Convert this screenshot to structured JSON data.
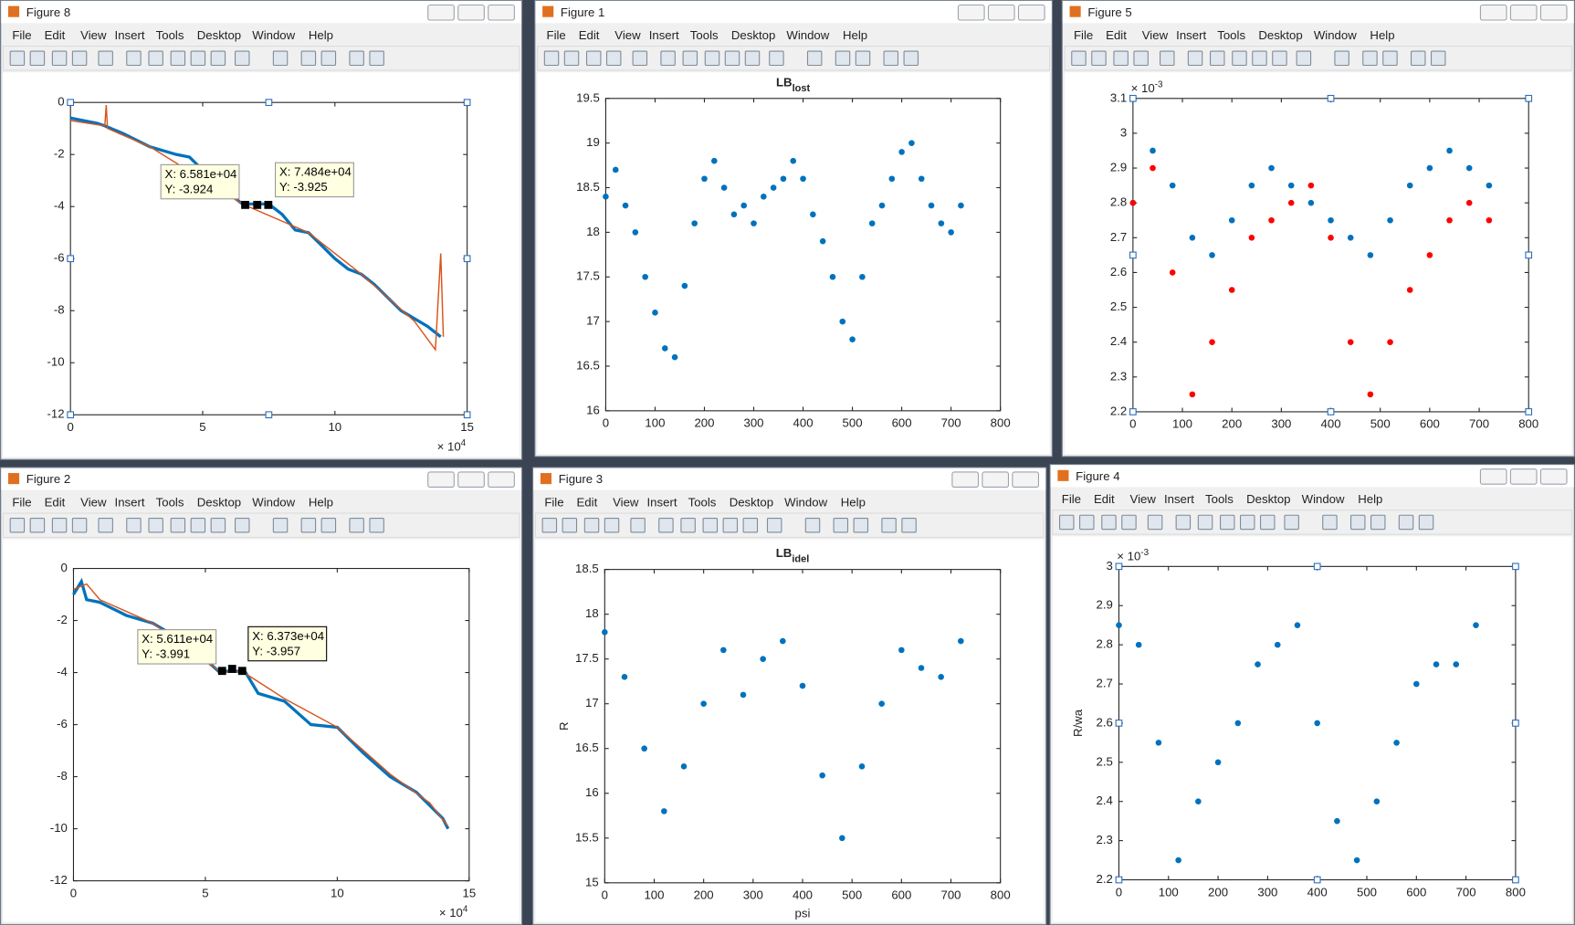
{
  "menu": [
    "File",
    "Edit",
    "View",
    "Insert",
    "Tools",
    "Desktop",
    "Window",
    "Help"
  ],
  "windows": [
    {
      "title": "Figure 8",
      "chart": {
        "type": "line",
        "xlim": [
          0,
          15
        ],
        "ylim": [
          -12,
          0
        ],
        "xticks": [
          0,
          5,
          10,
          15
        ],
        "yticks": [
          0,
          -2,
          -4,
          -6,
          -8,
          -10,
          -12
        ],
        "x_exponent": {
          "base": "× 10",
          "power": "4"
        },
        "series": [
          {
            "color": "#0072bd",
            "x": [
              0,
              0.5,
              1,
              1.3,
              2,
              3,
              4,
              4.5,
              5,
              5.5,
              6,
              6.5,
              7.5,
              8,
              8.5,
              9,
              9.5,
              10,
              10.5,
              11,
              11.5,
              12,
              12.5,
              13,
              13.5,
              14
            ],
            "values": [
              -0.6,
              -0.7,
              -0.8,
              -0.9,
              -1.2,
              -1.7,
              -2.0,
              -2.1,
              -2.6,
              -3.0,
              -3.5,
              -3.9,
              -3.9,
              -4.3,
              -4.9,
              -5.0,
              -5.5,
              -6.0,
              -6.4,
              -6.6,
              -7.0,
              -7.5,
              -8.0,
              -8.3,
              -8.6,
              -9.0
            ]
          },
          {
            "color": "#d95319",
            "x": [
              0,
              1.3,
              1.35,
              1.4,
              3,
              6.5,
              9,
              11,
              13,
              13.8,
              14,
              14.1
            ],
            "values": [
              -0.7,
              -0.9,
              -0.1,
              -1.0,
              -1.7,
              -3.9,
              -5.0,
              -6.6,
              -8.4,
              -9.5,
              -5.8,
              -9.0
            ]
          }
        ],
        "datatips": [
          {
            "x": "X: 6.581e+04",
            "y": "Y: -3.924"
          },
          {
            "x": "X: 7.484e+04",
            "y": "Y: -3.925"
          }
        ]
      }
    },
    {
      "title": "Figure 1",
      "chart": {
        "type": "scatter",
        "title": {
          "text": "LB",
          "subscript": "lost"
        },
        "xlim": [
          0,
          800
        ],
        "ylim": [
          16,
          19.5
        ],
        "xticks": [
          0,
          100,
          200,
          300,
          400,
          500,
          600,
          700,
          800
        ],
        "yticks": [
          16,
          16.5,
          17,
          17.5,
          18,
          18.5,
          19,
          19.5
        ],
        "series": [
          {
            "color": "#0072bd",
            "x": [
              0,
              20,
              40,
              60,
              80,
              100,
              120,
              140,
              160,
              180,
              200,
              220,
              240,
              260,
              280,
              300,
              320,
              340,
              360,
              380,
              400,
              420,
              440,
              460,
              480,
              500,
              520,
              540,
              560,
              580,
              600,
              620,
              640,
              660,
              680,
              700,
              720
            ],
            "values": [
              18.4,
              18.7,
              18.3,
              18.0,
              17.5,
              17.1,
              16.7,
              16.6,
              17.4,
              18.1,
              18.6,
              18.8,
              18.5,
              18.2,
              18.3,
              18.1,
              18.4,
              18.5,
              18.6,
              18.8,
              18.6,
              18.2,
              17.9,
              17.5,
              17.0,
              16.8,
              17.5,
              18.1,
              18.3,
              18.6,
              18.9,
              19.0,
              18.6,
              18.3,
              18.1,
              18.0,
              18.3
            ]
          }
        ]
      }
    },
    {
      "title": "Figure 5",
      "chart": {
        "type": "scatter",
        "xlim": [
          0,
          800
        ],
        "ylim": [
          2.2,
          3.1
        ],
        "xticks": [
          0,
          100,
          200,
          300,
          400,
          500,
          600,
          700,
          800
        ],
        "yticks": [
          2.2,
          2.3,
          2.4,
          2.5,
          2.6,
          2.7,
          2.8,
          2.9,
          3,
          3.1
        ],
        "y_exponent": {
          "base": "× 10",
          "power": "-3"
        },
        "series": [
          {
            "color": "#0072bd",
            "x": [
              0,
              40,
              80,
              120,
              160,
              200,
              240,
              280,
              320,
              360,
              400,
              440,
              480,
              520,
              560,
              600,
              640,
              680,
              720
            ],
            "values": [
              2.8,
              2.95,
              2.85,
              2.7,
              2.65,
              2.75,
              2.85,
              2.9,
              2.85,
              2.8,
              2.75,
              2.7,
              2.65,
              2.75,
              2.85,
              2.9,
              2.95,
              2.9,
              2.85
            ]
          },
          {
            "color": "#ff0000",
            "x": [
              0,
              40,
              80,
              120,
              160,
              200,
              240,
              280,
              320,
              360,
              400,
              440,
              480,
              520,
              560,
              600,
              640,
              680,
              720
            ],
            "values": [
              2.8,
              2.9,
              2.6,
              2.25,
              2.4,
              2.55,
              2.7,
              2.75,
              2.8,
              2.85,
              2.7,
              2.4,
              2.25,
              2.4,
              2.55,
              2.65,
              2.75,
              2.8,
              2.75
            ]
          }
        ]
      }
    },
    {
      "title": "Figure 2",
      "chart": {
        "type": "line",
        "xlim": [
          0,
          15
        ],
        "ylim": [
          -12,
          0
        ],
        "xticks": [
          0,
          5,
          10,
          15
        ],
        "yticks": [
          0,
          -2,
          -4,
          -6,
          -8,
          -10,
          -12
        ],
        "x_exponent": {
          "base": "× 10",
          "power": "4"
        },
        "series": [
          {
            "color": "#0072bd",
            "x": [
              0,
              0.3,
              0.5,
              1,
              2,
              3,
              4,
              5,
              5.5,
              6.5,
              7,
              8,
              9,
              10,
              11,
              12,
              13,
              14,
              14.2
            ],
            "values": [
              -1.0,
              -0.5,
              -1.2,
              -1.3,
              -1.8,
              -2.1,
              -2.7,
              -3.5,
              -3.95,
              -3.95,
              -4.8,
              -5.1,
              -6.0,
              -6.1,
              -7.1,
              -8.0,
              -8.6,
              -9.6,
              -10.0
            ]
          },
          {
            "color": "#d95319",
            "x": [
              0,
              0.5,
              1,
              3,
              5.6,
              6.4,
              8,
              10,
              12,
              13.5,
              14.2
            ],
            "values": [
              -0.8,
              -0.6,
              -1.2,
              -2.1,
              -3.99,
              -3.96,
              -5.0,
              -6.1,
              -7.9,
              -9.0,
              -9.9
            ]
          }
        ],
        "datatips": [
          {
            "x": "X: 5.611e+04",
            "y": "Y: -3.991"
          },
          {
            "x": "X: 6.373e+04",
            "y": "Y: -3.957"
          }
        ]
      }
    },
    {
      "title": "Figure 3",
      "chart": {
        "type": "scatter",
        "title": {
          "text": "LB",
          "subscript": "idel"
        },
        "xlabel": "psi",
        "ylabel": "R",
        "xlim": [
          0,
          800
        ],
        "ylim": [
          15,
          18.5
        ],
        "xticks": [
          0,
          100,
          200,
          300,
          400,
          500,
          600,
          700,
          800
        ],
        "yticks": [
          15,
          15.5,
          16,
          16.5,
          17,
          17.5,
          18,
          18.5
        ],
        "series": [
          {
            "color": "#0072bd",
            "x": [
              0,
              40,
              80,
              120,
              160,
              200,
              240,
              280,
              320,
              360,
              400,
              440,
              480,
              520,
              560,
              600,
              640,
              680,
              720
            ],
            "values": [
              17.8,
              17.3,
              16.5,
              15.8,
              16.3,
              17.0,
              17.6,
              17.1,
              17.5,
              17.7,
              17.2,
              16.2,
              15.5,
              16.3,
              17.0,
              17.6,
              17.4,
              17.3,
              17.7
            ]
          }
        ]
      }
    },
    {
      "title": "Figure 4",
      "chart": {
        "type": "scatter",
        "ylabel": "R/wa",
        "xlim": [
          0,
          800
        ],
        "ylim": [
          2.2,
          3
        ],
        "xticks": [
          0,
          100,
          200,
          300,
          400,
          500,
          600,
          700,
          800
        ],
        "yticks": [
          2.2,
          2.3,
          2.4,
          2.5,
          2.6,
          2.7,
          2.8,
          2.9,
          3
        ],
        "y_exponent": {
          "base": "× 10",
          "power": "-3"
        },
        "series": [
          {
            "color": "#0072bd",
            "x": [
              0,
              40,
              80,
              120,
              160,
              200,
              240,
              280,
              320,
              360,
              400,
              440,
              480,
              520,
              560,
              600,
              640,
              680,
              720
            ],
            "values": [
              2.85,
              2.8,
              2.55,
              2.25,
              2.4,
              2.5,
              2.6,
              2.75,
              2.8,
              2.85,
              2.6,
              2.35,
              2.25,
              2.4,
              2.55,
              2.7,
              2.75,
              2.75,
              2.85
            ]
          }
        ]
      }
    }
  ]
}
